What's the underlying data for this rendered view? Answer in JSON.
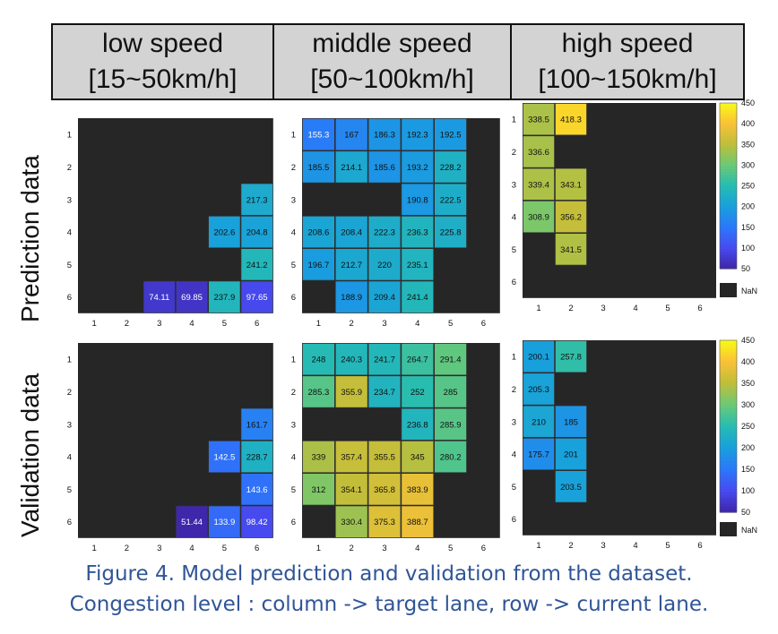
{
  "header": {
    "low": {
      "line1": "low speed",
      "line2": "[15~50km/h]"
    },
    "mid": {
      "line1": "middle speed",
      "line2": "[50~100km/h]"
    },
    "high": {
      "line1": "high speed",
      "line2": "[100~150km/h]"
    }
  },
  "row_labels": {
    "prediction": "Prediction data",
    "validation": "Validation data"
  },
  "caption": {
    "line1": "Figure 4. Model prediction and validation from the dataset.",
    "line2": "Congestion level : column -> target lane, row -> current lane."
  },
  "colors": {
    "nan": "#262626",
    "colormap": "parula"
  },
  "chart_data": [
    {
      "id": "pred-low",
      "type": "heatmap",
      "x_ticks": [
        1,
        2,
        3,
        4,
        5,
        6
      ],
      "y_ticks": [
        1,
        2,
        3,
        4,
        5,
        6
      ],
      "clim": [
        50,
        450
      ],
      "nan_label": "NaN",
      "cells": [
        [
          null,
          null,
          null,
          null,
          null,
          null
        ],
        [
          null,
          null,
          null,
          null,
          null,
          null
        ],
        [
          null,
          null,
          null,
          null,
          null,
          217.3
        ],
        [
          null,
          null,
          null,
          null,
          202.6,
          204.8
        ],
        [
          null,
          null,
          null,
          null,
          null,
          241.2
        ],
        [
          null,
          null,
          74.11,
          69.85,
          237.9,
          97.65
        ]
      ]
    },
    {
      "id": "pred-mid",
      "type": "heatmap",
      "x_ticks": [
        1,
        2,
        3,
        4,
        5,
        6
      ],
      "y_ticks": [
        1,
        2,
        3,
        4,
        5,
        6
      ],
      "clim": [
        50,
        450
      ],
      "nan_label": "NaN",
      "cells": [
        [
          155.3,
          167,
          186.3,
          192.3,
          192.5,
          null
        ],
        [
          185.5,
          214.1,
          185.6,
          193.2,
          228.2,
          null
        ],
        [
          null,
          null,
          null,
          190.8,
          222.5,
          null
        ],
        [
          208.6,
          208.4,
          222.3,
          236.3,
          225.8,
          null
        ],
        [
          196.7,
          212.7,
          220,
          235.1,
          null,
          null
        ],
        [
          null,
          188.9,
          209.4,
          241.4,
          null,
          null
        ]
      ]
    },
    {
      "id": "pred-high",
      "type": "heatmap",
      "x_ticks": [
        1,
        2,
        3,
        4,
        5,
        6
      ],
      "y_ticks": [
        1,
        2,
        3,
        4,
        5,
        6
      ],
      "clim": [
        50,
        450
      ],
      "nan_label": "NaN",
      "colorbar_ticks": [
        50,
        100,
        150,
        200,
        250,
        300,
        350,
        400,
        450
      ],
      "cells": [
        [
          338.5,
          418.3,
          null,
          null,
          null,
          null
        ],
        [
          336.6,
          null,
          null,
          null,
          null,
          null
        ],
        [
          339.4,
          343.1,
          null,
          null,
          null,
          null
        ],
        [
          308.9,
          356.2,
          null,
          null,
          null,
          null
        ],
        [
          null,
          341.5,
          null,
          null,
          null,
          null
        ],
        [
          null,
          null,
          null,
          null,
          null,
          null
        ]
      ]
    },
    {
      "id": "val-low",
      "type": "heatmap",
      "x_ticks": [
        1,
        2,
        3,
        4,
        5,
        6
      ],
      "y_ticks": [
        1,
        2,
        3,
        4,
        5,
        6
      ],
      "clim": [
        50,
        450
      ],
      "nan_label": "NaN",
      "cells": [
        [
          null,
          null,
          null,
          null,
          null,
          null
        ],
        [
          null,
          null,
          null,
          null,
          null,
          null
        ],
        [
          null,
          null,
          null,
          null,
          null,
          161.7
        ],
        [
          null,
          null,
          null,
          null,
          142.5,
          228.7
        ],
        [
          null,
          null,
          null,
          null,
          null,
          143.6
        ],
        [
          null,
          null,
          null,
          51.44,
          133.9,
          98.42
        ]
      ]
    },
    {
      "id": "val-mid",
      "type": "heatmap",
      "x_ticks": [
        1,
        2,
        3,
        4,
        5,
        6
      ],
      "y_ticks": [
        1,
        2,
        3,
        4,
        5,
        6
      ],
      "clim": [
        50,
        450
      ],
      "nan_label": "NaN",
      "cells": [
        [
          248,
          240.3,
          241.7,
          264.7,
          291.4,
          null
        ],
        [
          285.3,
          355.9,
          234.7,
          252,
          285,
          null
        ],
        [
          null,
          null,
          null,
          236.8,
          285.9,
          null
        ],
        [
          339,
          357.4,
          355.5,
          345,
          280.2,
          null
        ],
        [
          312,
          354.1,
          365.8,
          383.9,
          null,
          null
        ],
        [
          null,
          330.4,
          375.3,
          388.7,
          null,
          null
        ]
      ]
    },
    {
      "id": "val-high",
      "type": "heatmap",
      "x_ticks": [
        1,
        2,
        3,
        4,
        5,
        6
      ],
      "y_ticks": [
        1,
        2,
        3,
        4,
        5,
        6
      ],
      "clim": [
        50,
        450
      ],
      "nan_label": "NaN",
      "colorbar_ticks": [
        50,
        100,
        150,
        200,
        250,
        300,
        350,
        400,
        450
      ],
      "cells": [
        [
          200.1,
          257.8,
          null,
          null,
          null,
          null
        ],
        [
          205.3,
          null,
          null,
          null,
          null,
          null
        ],
        [
          210,
          185,
          null,
          null,
          null,
          null
        ],
        [
          175.7,
          201,
          null,
          null,
          null,
          null
        ],
        [
          null,
          203.5,
          null,
          null,
          null,
          null
        ],
        [
          null,
          null,
          null,
          null,
          null,
          null
        ]
      ]
    }
  ]
}
